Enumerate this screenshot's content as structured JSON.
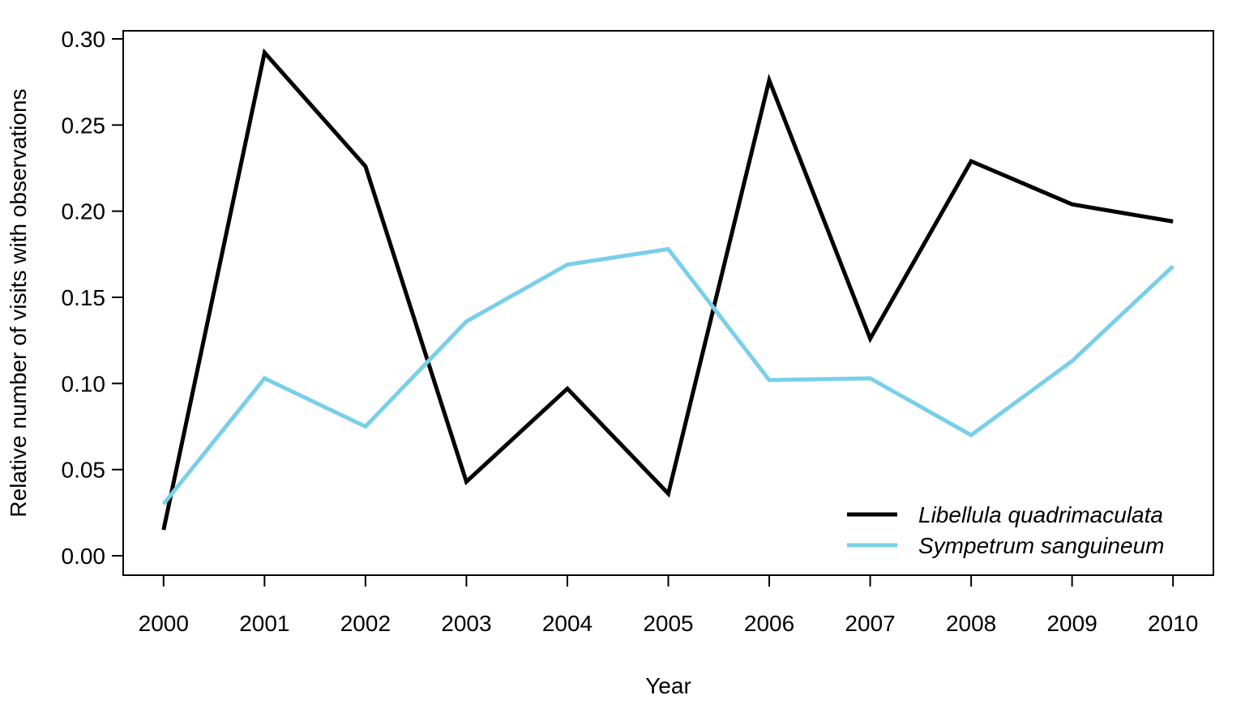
{
  "chart_data": {
    "type": "line",
    "title": "",
    "xlabel": "Year",
    "ylabel": "Relative number of visits with observations",
    "x": [
      2000,
      2001,
      2002,
      2003,
      2004,
      2005,
      2006,
      2007,
      2008,
      2009,
      2010
    ],
    "x_tick_labels": [
      "2000",
      "2001",
      "2002",
      "2003",
      "2004",
      "2005",
      "2006",
      "2007",
      "2008",
      "2009",
      "2010"
    ],
    "y_ticks": [
      0.0,
      0.05,
      0.1,
      0.15,
      0.2,
      0.25,
      0.3
    ],
    "y_tick_labels": [
      "0.00",
      "0.05",
      "0.10",
      "0.15",
      "0.20",
      "0.25",
      "0.30"
    ],
    "xlim": [
      1999.6,
      2010.4
    ],
    "ylim": [
      -0.011,
      0.3
    ],
    "grid": false,
    "legend_position": "bottom-right",
    "series": [
      {
        "name": "Libellula quadrimaculata",
        "color": "#000000",
        "values": [
          0.015,
          0.292,
          0.226,
          0.043,
          0.097,
          0.036,
          0.276,
          0.126,
          0.229,
          0.204,
          0.194
        ]
      },
      {
        "name": "Sympetrum sanguineum",
        "color": "#7ACFE8",
        "values": [
          0.03,
          0.103,
          0.075,
          0.136,
          0.169,
          0.178,
          0.102,
          0.103,
          0.07,
          0.113,
          0.168
        ]
      }
    ]
  }
}
